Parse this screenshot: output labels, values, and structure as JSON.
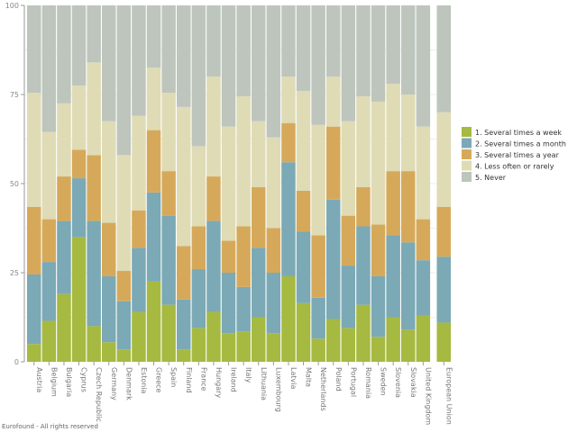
{
  "chart_data": {
    "type": "bar",
    "stacked": true,
    "ylim": [
      0,
      100
    ],
    "yticks": [
      "0",
      "25",
      "50",
      "75",
      "100"
    ],
    "grid": true,
    "legend_position": "right",
    "categories": [
      "Austria",
      "Belgium",
      "Bulgaria",
      "Cyprus",
      "Czech Republic",
      "Germany",
      "Denmark",
      "Estonia",
      "Greece",
      "Spain",
      "Finland",
      "France",
      "Hungary",
      "Ireland",
      "Italy",
      "Lithuania",
      "Luxembourg",
      "Latvia",
      "Malta",
      "Netherlands",
      "Poland",
      "Portugal",
      "Romania",
      "Sweden",
      "Slovenia",
      "Slovakia",
      "United Kingdom",
      "European Union"
    ],
    "series": [
      {
        "name": "1. Several times a week",
        "color": "#a6b941",
        "values": [
          5,
          11.5,
          19,
          35,
          10,
          5.5,
          3.5,
          14,
          22.5,
          16,
          3.5,
          9.5,
          14,
          8,
          8.5,
          12.5,
          8,
          24,
          16.5,
          6.5,
          12,
          9.5,
          16,
          7,
          12.5,
          9,
          13,
          11
        ]
      },
      {
        "name": "2. Several times a month",
        "color": "#7ba9b5",
        "values": [
          19.5,
          16.5,
          20.5,
          16.5,
          29.5,
          18.5,
          13.5,
          18,
          25,
          25,
          14,
          16.5,
          25.5,
          17,
          12.5,
          19.5,
          17,
          32,
          20,
          11.5,
          33.5,
          17.5,
          22,
          17,
          23,
          24.5,
          15.5,
          18.5
        ]
      },
      {
        "name": "3. Several times a year",
        "color": "#d6a95a",
        "values": [
          19,
          12,
          12.5,
          8,
          18.5,
          15,
          8.5,
          10.5,
          17.5,
          12.5,
          15,
          12,
          12.5,
          9,
          17,
          17,
          12.5,
          11,
          11.5,
          17.5,
          20.5,
          14,
          11,
          14.5,
          18,
          20,
          11.5,
          14
        ]
      },
      {
        "name": "4. Less often or rarely",
        "color": "#dfdbb5",
        "values": [
          32,
          24.5,
          20.5,
          18,
          26,
          28.5,
          32.5,
          26.5,
          17.5,
          22,
          39,
          22.5,
          28,
          32,
          36.5,
          18.5,
          25.5,
          13,
          28,
          31,
          14,
          26.5,
          25.5,
          34.5,
          24.5,
          21.5,
          26,
          26.5
        ]
      },
      {
        "name": "5. Never",
        "color": "#bdc5bd",
        "values": [
          24.5,
          35.5,
          27.5,
          22.5,
          16,
          32.5,
          42,
          31,
          17.5,
          24.5,
          28.5,
          39.5,
          20,
          34,
          25.5,
          32.5,
          37,
          20,
          24,
          33.5,
          20,
          32.5,
          25.5,
          27,
          22,
          25,
          34,
          30
        ]
      }
    ]
  },
  "footer": "Eurofound - All rights reserved"
}
